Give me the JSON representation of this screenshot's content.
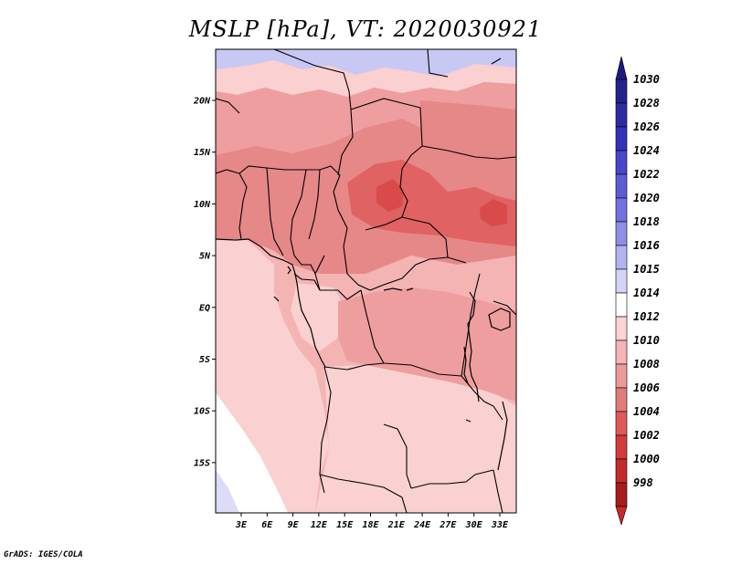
{
  "title": "MSLP [hPa], VT: 2020030921",
  "footer": "GrADS: IGES/COLA",
  "x_axis_labels": [
    "3E",
    "6E",
    "9E",
    "12E",
    "15E",
    "18E",
    "21E",
    "24E",
    "27E",
    "30E",
    "33E"
  ],
  "y_axis_labels": [
    "20N",
    "15N",
    "10N",
    "5N",
    "EQ",
    "5S",
    "10S",
    "15S"
  ],
  "colorbar": {
    "levels": [
      {
        "label": "1030",
        "color": "#23238c"
      },
      {
        "label": "1028",
        "color": "#2b2ba3"
      },
      {
        "label": "1026",
        "color": "#3333b8"
      },
      {
        "label": "1024",
        "color": "#4747cc"
      },
      {
        "label": "1022",
        "color": "#5c5cd6"
      },
      {
        "label": "1020",
        "color": "#7272e0"
      },
      {
        "label": "1018",
        "color": "#8f8fe8"
      },
      {
        "label": "1016",
        "color": "#b3b3f0"
      },
      {
        "label": "1015",
        "color": "#d4d4f6"
      },
      {
        "label": "1014",
        "color": "#ffffff"
      },
      {
        "label": "1012",
        "color": "#fbd4d4"
      },
      {
        "label": "1010",
        "color": "#f5b5b5"
      },
      {
        "label": "1008",
        "color": "#ed9a9a"
      },
      {
        "label": "1006",
        "color": "#e07c7c"
      },
      {
        "label": "1004",
        "color": "#e05a5a"
      },
      {
        "label": "1002",
        "color": "#d43c3c"
      },
      {
        "label": "1000",
        "color": "#c42c2c"
      },
      {
        "label": "998",
        "color": "#a81c1c"
      }
    ],
    "top_color": "#1a1a80",
    "bottom_color": "#c82828"
  },
  "colors": {
    "blue_high": "#c8c8f4",
    "pale_blue": "#dcdcf8",
    "light_pink": "#fad0d0",
    "pink": "#f4b4b4",
    "mid": "#ee9e9e",
    "rose": "#e68888",
    "red": "#e06262",
    "strong_red": "#d94a4a"
  }
}
